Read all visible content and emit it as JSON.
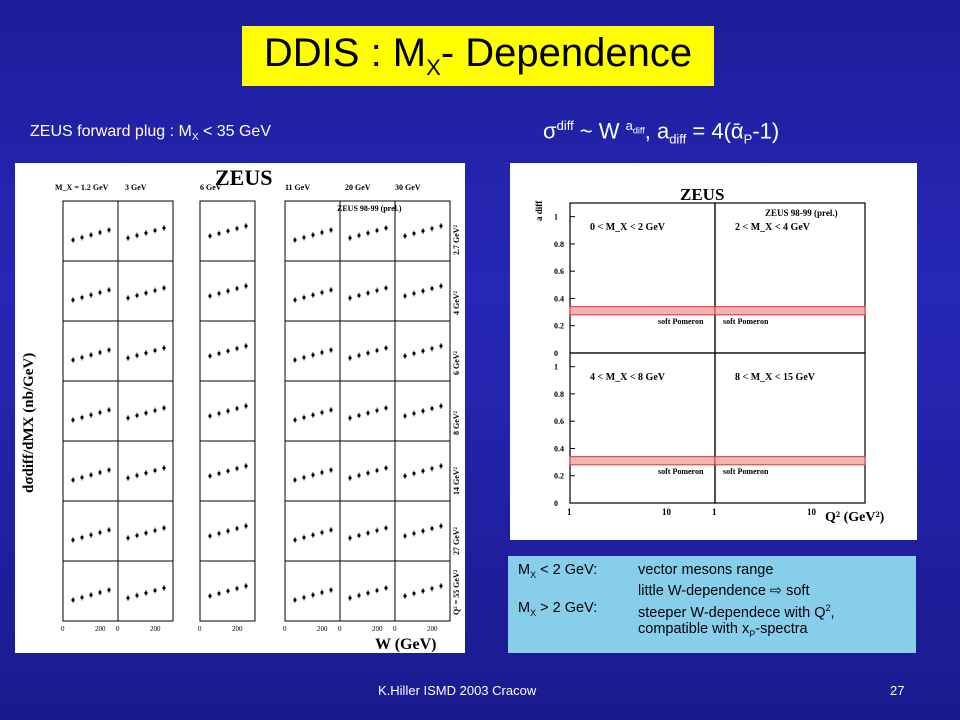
{
  "title": {
    "main": "DDIS : M",
    "sub": "X",
    "rest": "- Dependence"
  },
  "subtitle": {
    "prefix": "ZEUS forward plug :    M",
    "sub": "X",
    "rest": " < 35 GeV"
  },
  "formula": {
    "sigma": "σ",
    "sup1": "diff",
    "mid": " ~ W ",
    "sup2": "a",
    "sup2sub": "diff",
    "rest1": ", a",
    "sub1": "diff",
    "rest2": " = 4(ᾱ",
    "sub2": "P",
    "rest3": "-1)"
  },
  "left_plot": {
    "brand": "ZEUS",
    "legend": "ZEUS 98-99 (prel.)",
    "mx_labels": [
      "M_X = 1.2 GeV",
      "3 GeV",
      "6 GeV",
      "11 GeV",
      "20 GeV",
      "30 GeV"
    ],
    "q2_labels": [
      "2.7 GeV²",
      "4 GeV²",
      "6 GeV²",
      "8 GeV²",
      "14 GeV²",
      "27 GeV²",
      "Q² = 55 GeV²"
    ],
    "ylabel": "dσdiff/dMX (nb/GeV)",
    "xlabel": "W (GeV)",
    "xticks": [
      "0",
      "200"
    ]
  },
  "right_plot": {
    "brand": "ZEUS",
    "legend": "ZEUS 98-99 (prel.)",
    "ylabel": "a diff",
    "xlabel": "Q² (GeV²)",
    "band_label": "soft Pomeron",
    "panels": [
      {
        "label": "0 < M_X < 2 GeV"
      },
      {
        "label": "2 < M_X < 4 GeV"
      },
      {
        "label": "4 < M_X < 8 GeV"
      },
      {
        "label": "8 < M_X < 15 GeV"
      }
    ],
    "yticks": [
      "0",
      "0.2",
      "0.4",
      "0.6",
      "0.8",
      "1"
    ],
    "xticks": [
      "1",
      "10",
      "1",
      "10"
    ]
  },
  "info": {
    "r1k": "M",
    "r1ks": "X",
    "r1kr": " < 2 GeV:",
    "r1v": "vector mesons range",
    "r2v": "little W-dependence ⇨ soft",
    "r3k": "M",
    "r3ks": "X",
    "r3kr": " > 2 GeV:",
    "r3v": "steeper W-dependece with Q",
    "r3vs": "2",
    "r3vr": ",",
    "r4v": "compatible with x",
    "r4vs": "P",
    "r4vr": "-spectra"
  },
  "footer": {
    "left": "K.Hiller  ISMD 2003   Cracow",
    "right": "27"
  }
}
